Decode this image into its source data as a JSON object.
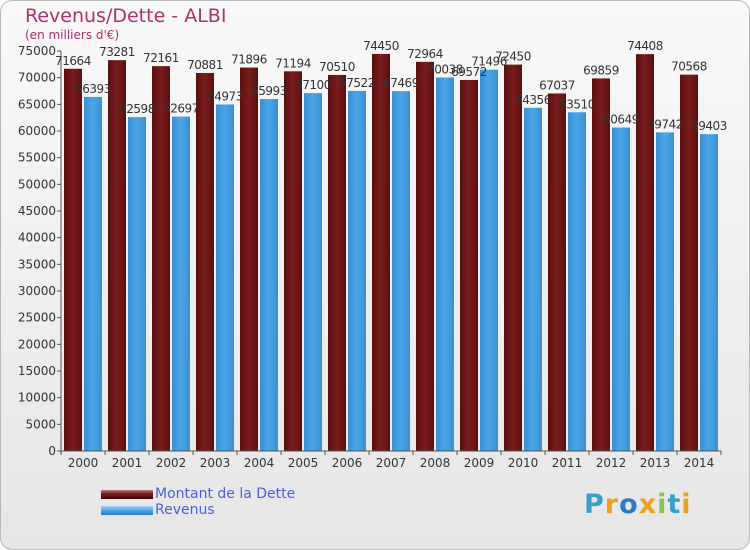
{
  "header": {
    "title": "Revenus/Dette - ALBI",
    "subtitle": "(en milliers d'€)"
  },
  "colors": {
    "dette": "#7a1d1d",
    "revenus": "#4aa6e8",
    "title": "#b0306a",
    "legend_text": "#4a61d6"
  },
  "logo": {
    "text": "Proxiti",
    "letters": [
      {
        "ch": "P",
        "color": "#3aa0c8"
      },
      {
        "ch": "r",
        "color": "#e9a31b"
      },
      {
        "ch": "o",
        "color": "#2f78c4"
      },
      {
        "ch": "x",
        "color": "#e9a31b"
      },
      {
        "ch": "i",
        "color": "#8cc63f"
      },
      {
        "ch": "t",
        "color": "#3aa0c8"
      },
      {
        "ch": "i",
        "color": "#e9a31b"
      }
    ]
  },
  "chart_data": {
    "type": "bar",
    "title": "Revenus/Dette - ALBI",
    "subtitle": "(en milliers d'€)",
    "categories": [
      "2000",
      "2001",
      "2002",
      "2003",
      "2004",
      "2005",
      "2006",
      "2007",
      "2008",
      "2009",
      "2010",
      "2011",
      "2012",
      "2013",
      "2014"
    ],
    "series": [
      {
        "name": "Montant de la Dette",
        "values": [
          71664,
          73281,
          72161,
          70881,
          71896,
          71194,
          70510,
          74450,
          72964,
          69572,
          72450,
          67037,
          69859,
          74408,
          70568
        ]
      },
      {
        "name": "Revenus",
        "values": [
          66393,
          62598,
          62697,
          64973,
          65993,
          67100,
          67522,
          67469,
          70038,
          71496,
          64356,
          63510,
          60649,
          59742,
          59403
        ]
      }
    ],
    "yticks": [
      0,
      5000,
      10000,
      15000,
      20000,
      25000,
      30000,
      35000,
      40000,
      45000,
      50000,
      55000,
      60000,
      65000,
      70000,
      75000
    ],
    "ylim": [
      0,
      75000
    ],
    "grid": false,
    "legend_position": "bottom-left"
  }
}
